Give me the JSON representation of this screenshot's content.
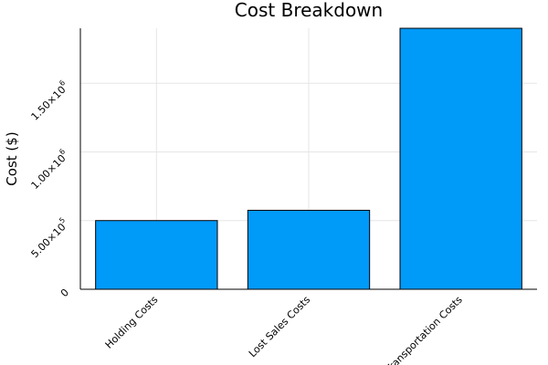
{
  "chart_data": {
    "type": "bar",
    "title": "Cost Breakdown",
    "xlabel": "",
    "ylabel": "Cost ($)",
    "categories": [
      "Holding Costs",
      "Lost Sales Costs",
      "Transportation Costs"
    ],
    "values": [
      500000,
      575000,
      1900000
    ],
    "ylim": [
      0,
      1900000
    ],
    "yticks": [
      0,
      500000,
      1000000,
      1500000
    ],
    "ytick_labels": [
      {
        "main": "0",
        "exp": ""
      },
      {
        "main": "5.00×10",
        "exp": "5"
      },
      {
        "main": "1.00×10",
        "exp": "6"
      },
      {
        "main": "1.50×10",
        "exp": "6"
      }
    ],
    "grid": true,
    "legend": "none",
    "bar_color": "#009af9"
  }
}
